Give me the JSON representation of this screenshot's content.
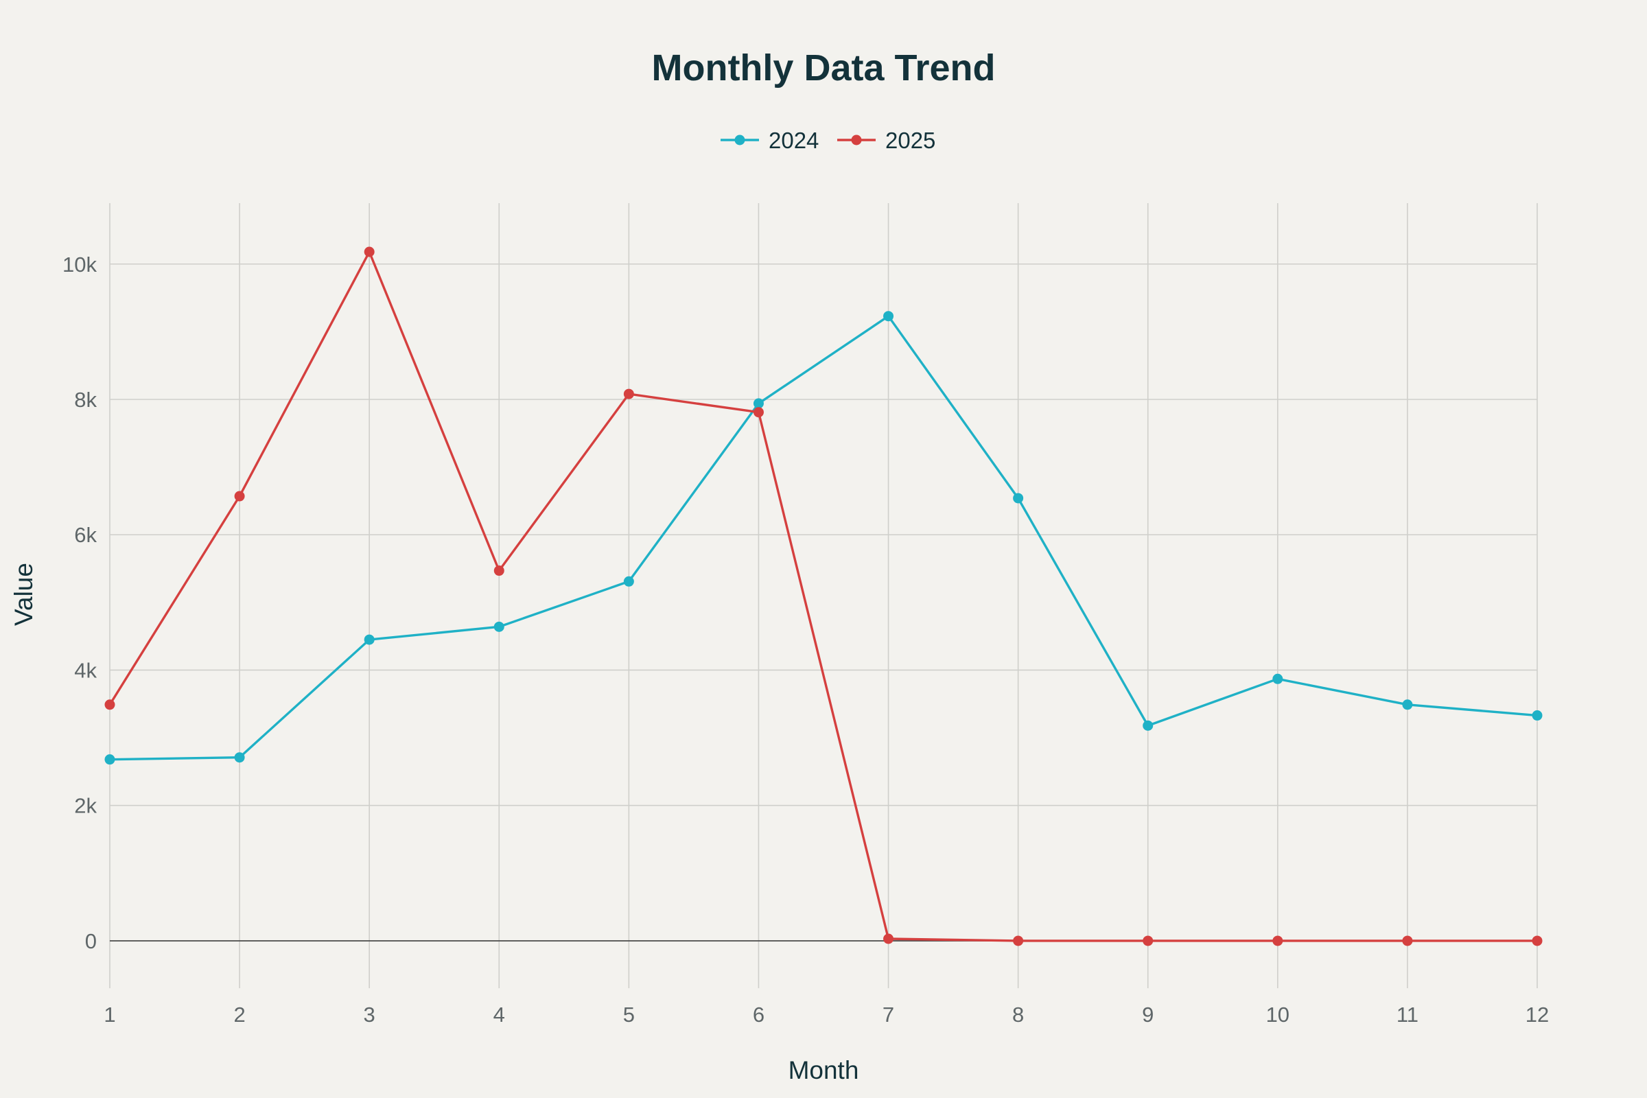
{
  "chart_data": {
    "type": "line",
    "title": "Monthly Data Trend",
    "xlabel": "Month",
    "ylabel": "Value",
    "x": [
      1,
      2,
      3,
      4,
      5,
      6,
      7,
      8,
      9,
      10,
      11,
      12
    ],
    "xtick_labels": [
      "1",
      "2",
      "3",
      "4",
      "5",
      "6",
      "7",
      "8",
      "9",
      "10",
      "11",
      "12"
    ],
    "ylim": [
      -700,
      10900
    ],
    "yticks": [
      0,
      2000,
      4000,
      6000,
      8000,
      10000
    ],
    "ytick_labels": [
      "0",
      "2k",
      "4k",
      "6k",
      "8k",
      "10k"
    ],
    "grid": true,
    "legend_position": "top-center",
    "series": [
      {
        "name": "2024",
        "color": "#1fb1c6",
        "values": [
          2680,
          2710,
          4450,
          4640,
          5310,
          7940,
          9230,
          6540,
          3180,
          3870,
          3490,
          3330
        ]
      },
      {
        "name": "2025",
        "color": "#d5403f",
        "values": [
          3490,
          6570,
          10180,
          5470,
          8080,
          7810,
          30,
          0,
          0,
          0,
          0,
          0
        ]
      }
    ]
  }
}
